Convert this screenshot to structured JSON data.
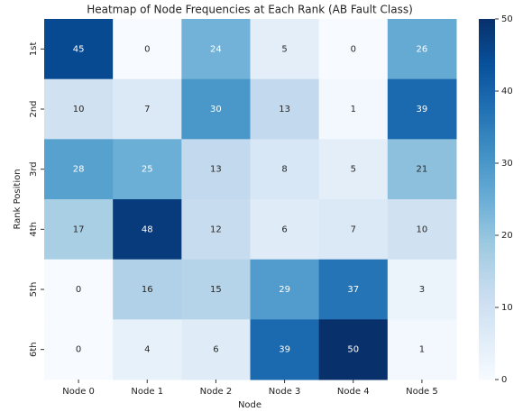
{
  "chart_data": {
    "type": "heatmap",
    "title": "Heatmap of Node Frequencies at Each Rank (AB Fault Class)",
    "xlabel": "Node",
    "ylabel": "Rank Position",
    "x_categories": [
      "Node 0",
      "Node 1",
      "Node 2",
      "Node 3",
      "Node 4",
      "Node 5"
    ],
    "y_categories": [
      "1st",
      "2nd",
      "3rd",
      "4th",
      "5th",
      "6th"
    ],
    "values": [
      [
        45,
        0,
        24,
        5,
        0,
        26
      ],
      [
        10,
        7,
        30,
        13,
        1,
        39
      ],
      [
        28,
        25,
        13,
        8,
        5,
        21
      ],
      [
        17,
        48,
        12,
        6,
        7,
        10
      ],
      [
        0,
        16,
        15,
        29,
        37,
        3
      ],
      [
        0,
        4,
        6,
        39,
        50,
        1
      ]
    ],
    "colormap": "Blues",
    "zlim": [
      0,
      50
    ],
    "colorbar_ticks": [
      0,
      10,
      20,
      30,
      40,
      50
    ]
  }
}
